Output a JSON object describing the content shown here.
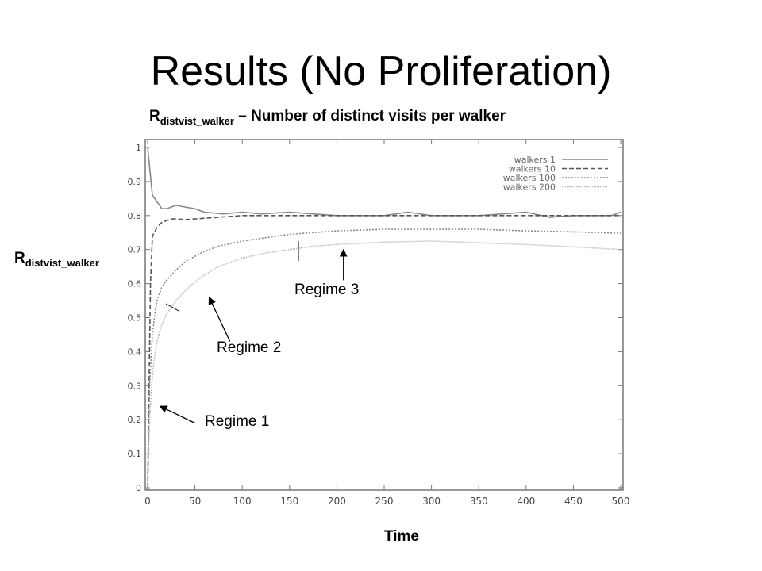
{
  "slide": {
    "title": "Results (No Proliferation)",
    "caption_main": "R",
    "caption_sub": "distvist_walker",
    "caption_rest": " – Number of distinct visits per walker",
    "y_label_main": "R",
    "y_label_sub": "distvist_walker",
    "x_label": "Time"
  },
  "annotations": [
    {
      "label": "Regime 1",
      "point": {
        "x": 13,
        "y": 0.24
      },
      "tail": {
        "x": 50,
        "y": 0.19
      }
    },
    {
      "label": "Regime 2",
      "point": {
        "x": 65,
        "y": 0.56
      },
      "tail": {
        "x": 87,
        "y": 0.43
      }
    },
    {
      "label": "Regime 3",
      "point": {
        "x": 207,
        "y": 0.7
      },
      "tail": {
        "x": 207,
        "y": 0.61
      }
    }
  ],
  "chart_data": {
    "type": "line",
    "xlim": [
      0,
      500
    ],
    "ylim": [
      0,
      1
    ],
    "xticks": [
      0,
      50,
      100,
      150,
      200,
      250,
      300,
      350,
      400,
      450,
      500
    ],
    "yticks": [
      0,
      0.1,
      0.2,
      0.3,
      0.4,
      0.5,
      0.6,
      0.7,
      0.8,
      0.9,
      1
    ],
    "legend_position": "top-right",
    "series": [
      {
        "name": "walkers 1",
        "color": "#888888",
        "dash": "",
        "x": [
          0,
          5,
          15,
          20,
          30,
          40,
          50,
          60,
          80,
          100,
          120,
          150,
          175,
          200,
          225,
          250,
          275,
          300,
          325,
          350,
          375,
          400,
          425,
          450,
          475,
          490,
          500
        ],
        "y": [
          1.0,
          0.86,
          0.82,
          0.82,
          0.83,
          0.825,
          0.82,
          0.81,
          0.805,
          0.81,
          0.805,
          0.81,
          0.805,
          0.8,
          0.8,
          0.8,
          0.81,
          0.8,
          0.8,
          0.8,
          0.805,
          0.81,
          0.795,
          0.8,
          0.8,
          0.8,
          0.81
        ]
      },
      {
        "name": "walkers 10",
        "color": "#555555",
        "dash": "6,3",
        "x": [
          0,
          3,
          5,
          10,
          15,
          20,
          25,
          30,
          40,
          50,
          75,
          100,
          150,
          200,
          250,
          300,
          350,
          400,
          450,
          500
        ],
        "y": [
          0.0,
          0.6,
          0.74,
          0.765,
          0.78,
          0.785,
          0.79,
          0.79,
          0.788,
          0.79,
          0.795,
          0.8,
          0.8,
          0.8,
          0.8,
          0.8,
          0.8,
          0.8,
          0.8,
          0.8
        ]
      },
      {
        "name": "walkers 100",
        "color": "#8a8a8a",
        "dash": "2,2",
        "x": [
          0,
          2,
          5,
          8,
          10,
          15,
          20,
          30,
          40,
          50,
          60,
          75,
          100,
          125,
          150,
          175,
          200,
          250,
          300,
          350,
          400,
          450,
          500
        ],
        "y": [
          0.0,
          0.3,
          0.45,
          0.52,
          0.55,
          0.59,
          0.61,
          0.64,
          0.665,
          0.68,
          0.695,
          0.71,
          0.725,
          0.735,
          0.745,
          0.75,
          0.755,
          0.76,
          0.76,
          0.76,
          0.755,
          0.752,
          0.748
        ]
      },
      {
        "name": "walkers 200",
        "color": "#b4b4b4",
        "dash": "1,1",
        "x": [
          0,
          2,
          5,
          8,
          10,
          15,
          20,
          30,
          40,
          50,
          60,
          75,
          100,
          125,
          150,
          175,
          200,
          250,
          300,
          350,
          400,
          450,
          500
        ],
        "y": [
          0.0,
          0.2,
          0.33,
          0.4,
          0.43,
          0.48,
          0.51,
          0.55,
          0.58,
          0.605,
          0.625,
          0.65,
          0.675,
          0.69,
          0.7,
          0.71,
          0.715,
          0.722,
          0.725,
          0.72,
          0.715,
          0.708,
          0.7
        ]
      }
    ]
  }
}
